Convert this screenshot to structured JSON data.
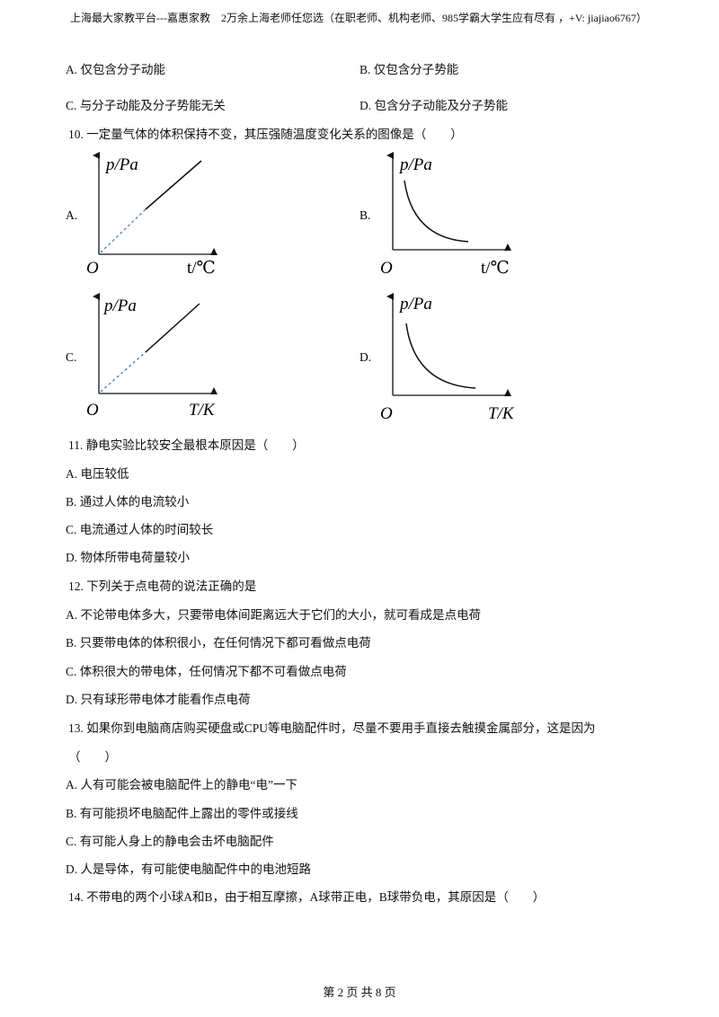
{
  "header": "上海最大家教平台---嘉惠家教　2万余上海老师任您选（在职老师、机构老师、985学霸大学生应有尽有 ，+V: jiajiao6767）",
  "previous_options": [
    "A. 仅包含分子动能",
    "B. 仅包含分子势能",
    "C. 与分子动能及分子势能无关",
    "D. 包含分子动能及分子势能"
  ],
  "questions": [
    {
      "stem": "10. 一定量气体的体积保持不变，其压强随温度变化关系的图像是（　　）",
      "graphs": [
        {
          "label": "A.",
          "y_axis": "p/Pa",
          "origin": "O",
          "x_axis": "t/℃"
        },
        {
          "label": "B.",
          "y_axis": "p/Pa",
          "origin": "O",
          "x_axis": "t/℃"
        },
        {
          "label": "C.",
          "y_axis": "p/Pa",
          "origin": "O",
          "x_axis": "T/K"
        },
        {
          "label": "D.",
          "y_axis": "p/Pa",
          "origin": "O",
          "x_axis": "T/K"
        }
      ]
    },
    {
      "stem": "11. 静电实验比较安全最根本原因是（　　）",
      "options": [
        "A. 电压较低",
        "B. 通过人体的电流较小",
        "C. 电流通过人体的时间较长",
        "D. 物体所带电荷量较小"
      ]
    },
    {
      "stem": "12. 下列关于点电荷的说法正确的是",
      "options": [
        "A. 不论带电体多大，只要带电体间距离远大于它们的大小，就可看成是点电荷",
        "B. 只要带电体的体积很小，在任何情况下都可看做点电荷",
        "C. 体积很大的带电体，任何情况下都不可看做点电荷",
        "D. 只有球形带电体才能看作点电荷"
      ]
    },
    {
      "stem": "13. 如果你到电脑商店购买硬盘或CPU等电脑配件时，尽量不要用手直接去触摸金属部分，这是因为",
      "stem_continued": "（　　）",
      "options": [
        "A. 人有可能会被电脑配件上的静电“电”一下",
        "B. 有可能损坏电脑配件上露出的零件或接线",
        "C. 有可能人身上的静电会击坏电脑配件",
        "D. 人是导体，有可能使电脑配件中的电池短路"
      ]
    },
    {
      "stem": "14. 不带电的两个小球A和B，由于相互摩擦，A球带正电，B球带负电，其原因是（　　）"
    }
  ],
  "footer": "第 2 页 共 8 页"
}
